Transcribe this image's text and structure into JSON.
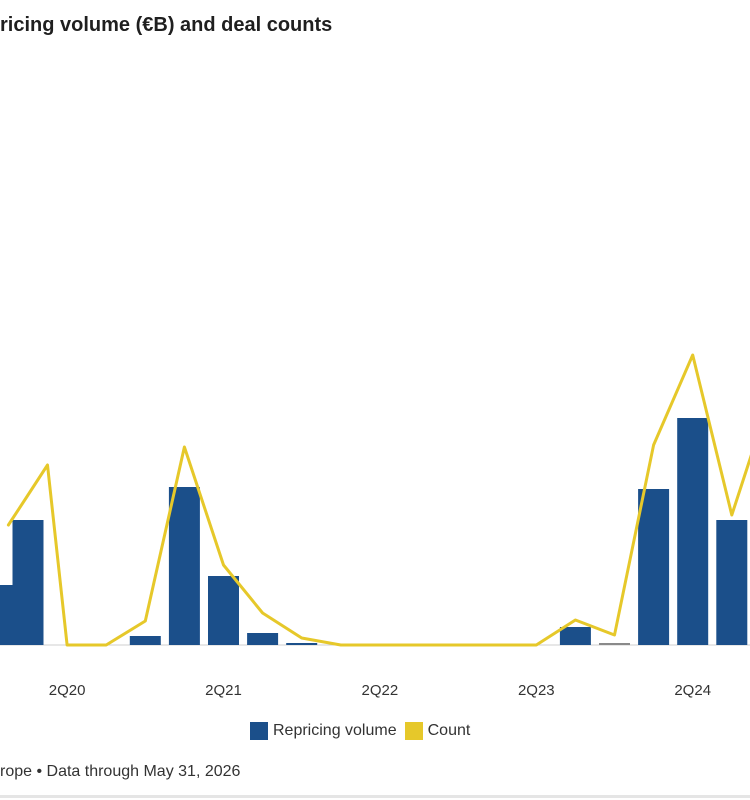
{
  "header": {
    "title": "ricing volume (€B) and deal counts"
  },
  "footer": {
    "source": "rope • Data through May 31, 2026"
  },
  "colors": {
    "volume": "#1b4f8a",
    "count": "#e6c82a",
    "axis": "#cfcfcf",
    "gray_bar": "#8a8a8a"
  },
  "chart_data": {
    "type": "bar",
    "title": "ricing volume (€B) and deal counts",
    "xlabel": "",
    "ylabel": "",
    "tick_labels": [
      "2Q20",
      "2Q21",
      "2Q22",
      "2Q23",
      "2Q24"
    ],
    "tick_positions": [
      1,
      5,
      9,
      13,
      17
    ],
    "legend": [
      "Repricing volume",
      "Count"
    ],
    "legend_position": "bottom",
    "grid": false,
    "volume_ylim": [
      0,
      300
    ],
    "count_ylim": [
      0,
      300
    ],
    "series": [
      {
        "name": "Repricing volume",
        "kind": "bar",
        "x": [
          -0.5,
          0,
          3,
          4,
          5,
          6,
          7,
          14,
          15,
          16,
          17,
          18
        ],
        "values": [
          60,
          125,
          9,
          158,
          69,
          12,
          2,
          18,
          2,
          156,
          227,
          125
        ]
      },
      {
        "name": "Count",
        "kind": "line",
        "x": [
          -0.5,
          0,
          0.5,
          1,
          2,
          3,
          4,
          5,
          6,
          7,
          8,
          9,
          10,
          11,
          12,
          13,
          14,
          15,
          16,
          17,
          18,
          19
        ],
        "values": [
          120,
          150,
          180,
          0,
          0,
          24,
          198,
          80,
          32,
          7,
          0,
          0,
          0,
          0,
          0,
          0,
          25,
          10,
          200,
          290,
          130,
          250
        ]
      }
    ]
  }
}
